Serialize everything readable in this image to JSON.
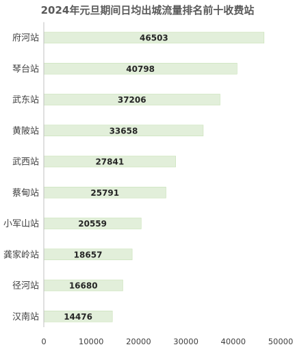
{
  "chart_data": {
    "type": "bar",
    "orientation": "horizontal",
    "title": "2024年元旦期间日均出城流量排名前十收费站",
    "categories": [
      "府河站",
      "琴台站",
      "武东站",
      "黄陂站",
      "武西站",
      "蔡甸站",
      "小军山站",
      "龚家岭站",
      "径河站",
      "汉南站"
    ],
    "values": [
      46503,
      40798,
      37206,
      33658,
      27841,
      25791,
      20559,
      18657,
      16680,
      14476
    ],
    "data_labels": [
      "46503",
      "40798",
      "37206",
      "33658",
      "27841",
      "25791",
      "20559",
      "18657",
      "16680",
      "14476"
    ],
    "xticks": [
      0,
      10000,
      20000,
      30000,
      40000,
      50000
    ],
    "xtick_labels": [
      "0",
      "10000",
      "20000",
      "30000",
      "40000",
      "50000"
    ],
    "xlim": [
      0,
      50000
    ],
    "xlabel": "",
    "ylabel": "",
    "grid": false,
    "legend": "none",
    "bar_color": "#e2efda",
    "bar_border_color": "#c6e0b4"
  }
}
